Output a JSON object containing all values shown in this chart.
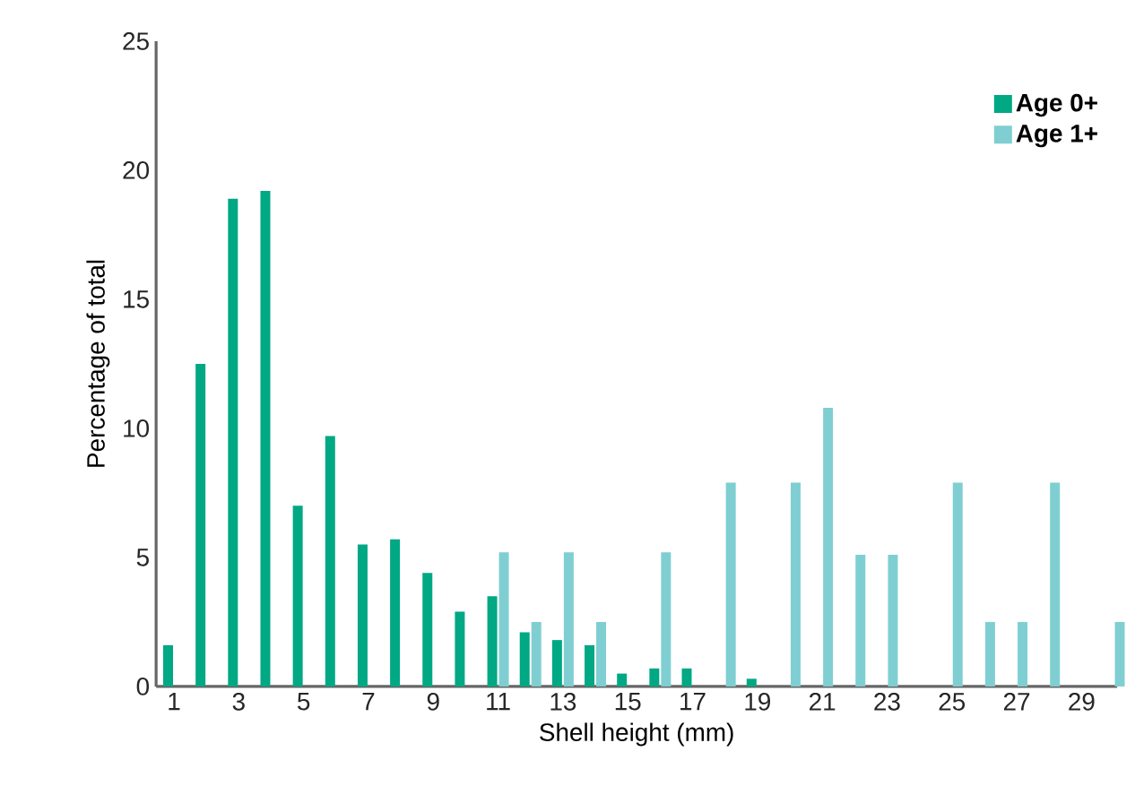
{
  "chart_data": {
    "type": "bar",
    "xlabel": "Shell height (mm)",
    "ylabel": "Percentage of total",
    "categories": [
      "1",
      null,
      "3",
      null,
      "5",
      null,
      "7",
      null,
      "9",
      null,
      "11",
      null,
      "13",
      null,
      "15",
      null,
      "17",
      null,
      "19",
      null,
      "21",
      null,
      "23",
      null,
      "25",
      null,
      "27",
      null,
      "29",
      null
    ],
    "series": [
      {
        "name": "Age 0+",
        "color": "#00a884",
        "values": [
          1.6,
          12.5,
          18.9,
          19.2,
          7.0,
          9.7,
          5.5,
          5.7,
          4.4,
          2.9,
          3.5,
          2.1,
          1.8,
          1.6,
          0.5,
          0.7,
          0.7,
          null,
          0.3,
          null,
          null,
          null,
          null,
          null,
          null,
          null,
          null,
          null,
          null,
          null
        ]
      },
      {
        "name": "Age 1+",
        "color": "#7fcfd2",
        "values": [
          null,
          null,
          null,
          null,
          null,
          null,
          null,
          null,
          null,
          null,
          5.2,
          2.5,
          5.2,
          2.5,
          null,
          5.2,
          null,
          7.9,
          null,
          7.9,
          10.8,
          5.1,
          5.1,
          null,
          7.9,
          2.5,
          2.5,
          7.9,
          null,
          2.5
        ]
      }
    ],
    "ylim": [
      0,
      25
    ],
    "yticks": [
      0,
      5,
      10,
      15,
      20,
      25
    ],
    "grid": false,
    "legend": "top right"
  }
}
